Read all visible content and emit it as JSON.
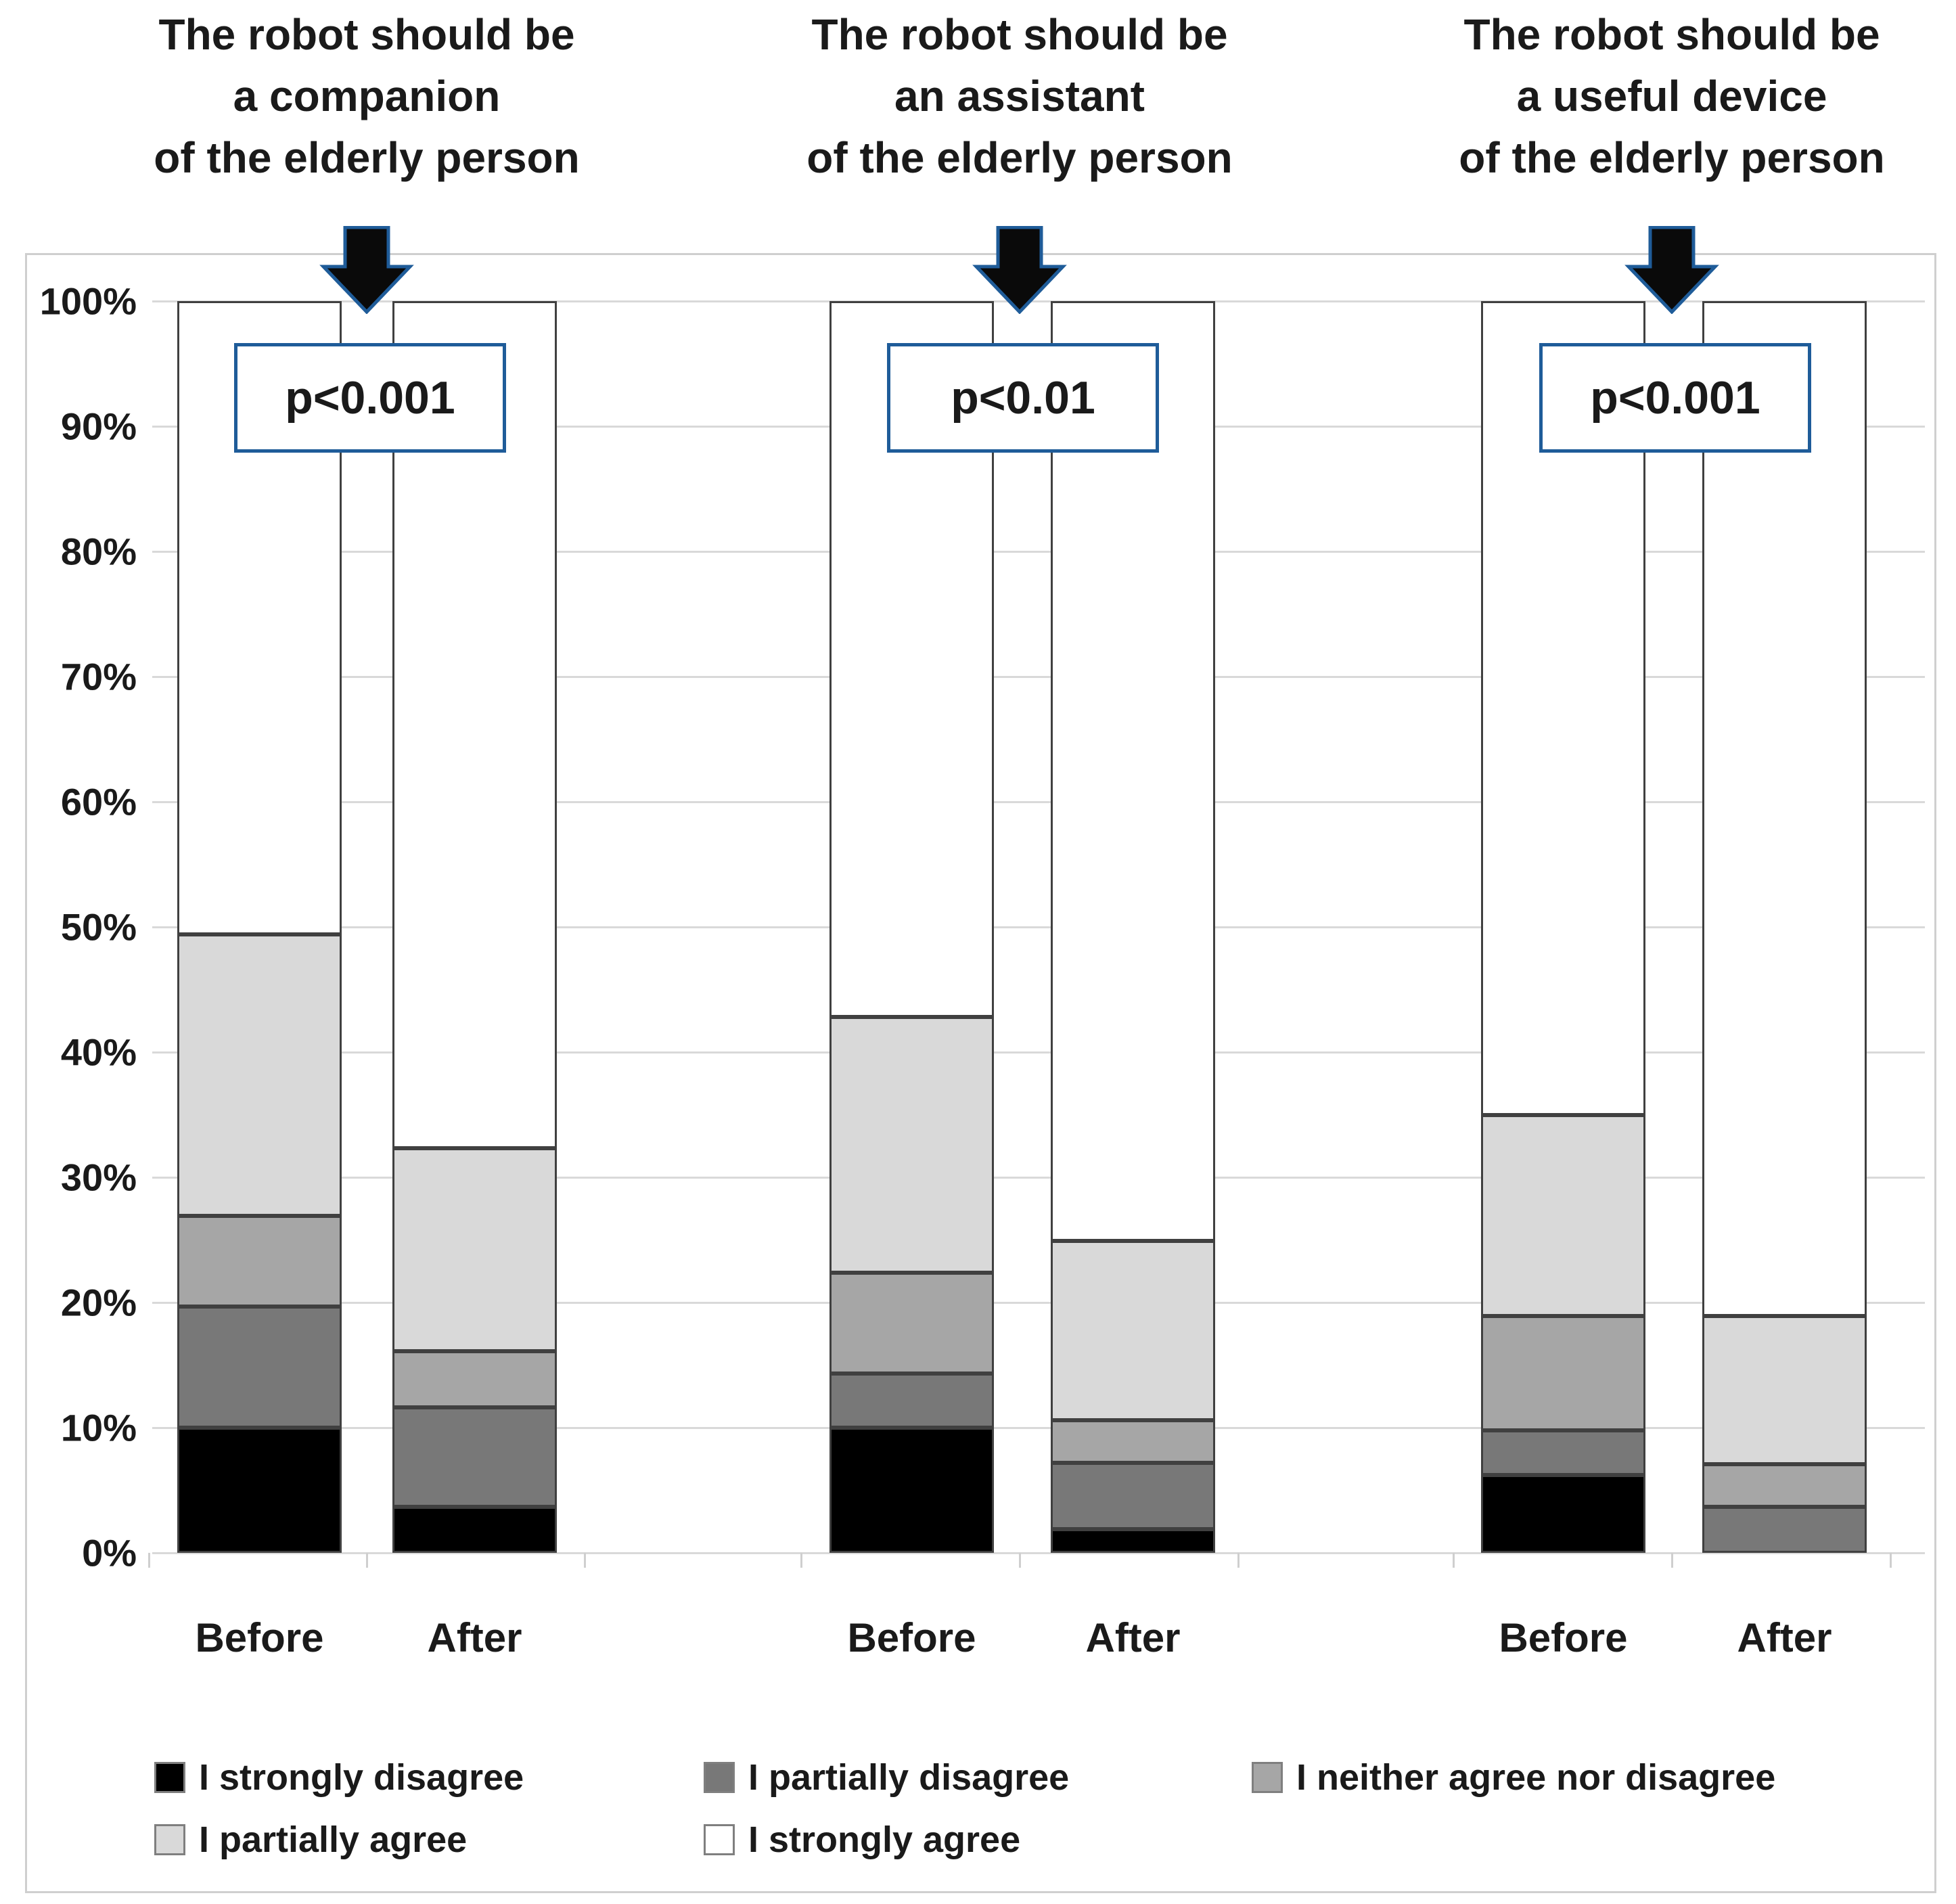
{
  "chart_data": {
    "type": "bar",
    "stacked": true,
    "title": "",
    "xlabel": "",
    "ylabel": "",
    "ylim": [
      0,
      100
    ],
    "grid": true,
    "legend_position": "bottom",
    "y_tick_labels": [
      "0%",
      "10%",
      "20%",
      "30%",
      "40%",
      "50%",
      "60%",
      "70%",
      "80%",
      "90%",
      "100%"
    ],
    "bar_categories": [
      "Before",
      "After"
    ],
    "series_order_bottom_to_top": [
      "I strongly disagree",
      "I partially disagree",
      "I neither agree nor disagree",
      "I partially agree",
      "I strongly agree"
    ],
    "groups": [
      {
        "title_lines": [
          "The robot should be",
          "a companion",
          "of the elderly person"
        ],
        "p_label": "p<0.001",
        "bars": [
          {
            "label": "Before",
            "values": [
              10.0,
              9.7,
              7.2,
              22.5,
              50.6
            ]
          },
          {
            "label": "After",
            "values": [
              3.7,
              7.9,
              4.5,
              16.2,
              67.7
            ]
          }
        ]
      },
      {
        "title_lines": [
          "The robot should be",
          "an assistant",
          "of the elderly person"
        ],
        "p_label": "p<0.01",
        "bars": [
          {
            "label": "Before",
            "values": [
              10.0,
              4.3,
              8.1,
              20.4,
              57.2
            ]
          },
          {
            "label": "After",
            "values": [
              1.9,
              5.3,
              3.4,
              14.3,
              75.1
            ]
          }
        ]
      },
      {
        "title_lines": [
          "The robot should be",
          "a useful device",
          "of the elderly person"
        ],
        "p_label": "p<0.001",
        "bars": [
          {
            "label": "Before",
            "values": [
              6.2,
              3.6,
              9.1,
              16.1,
              65.0
            ]
          },
          {
            "label": "After",
            "values": [
              0.0,
              3.7,
              3.4,
              11.8,
              81.1
            ]
          }
        ]
      }
    ],
    "legend_rows": [
      [
        "I strongly disagree",
        "I partially disagree",
        "I neither agree nor disagree"
      ],
      [
        "I partially agree",
        "I strongly agree"
      ]
    ]
  },
  "colors": {
    "series": {
      "I strongly disagree": "#000000",
      "I partially disagree": "#787878",
      "I neither agree nor disagree": "#a6a6a6",
      "I partially agree": "#d9d9d9",
      "I strongly agree": "#ffffff"
    },
    "segment_border": "#404040",
    "gridline": "#d9d9d9",
    "figure_border": "#cfcfcf",
    "accent_blue": "#1f5c99",
    "arrow_fill": "#0a0a0a",
    "text": "#1a1a1a"
  }
}
